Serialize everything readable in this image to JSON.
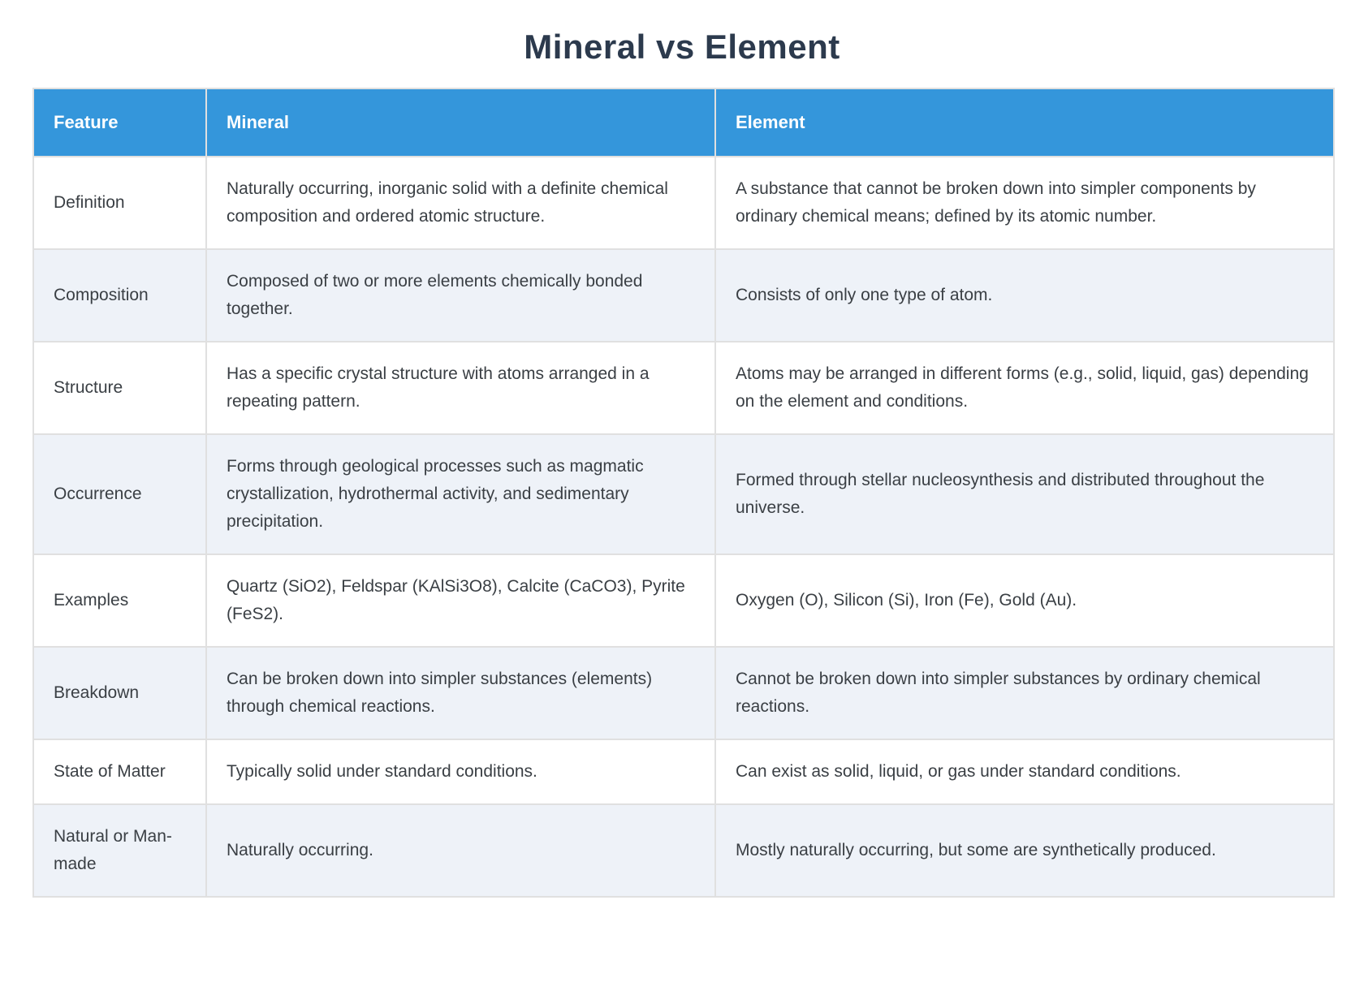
{
  "page": {
    "title": "Mineral vs Element"
  },
  "colors": {
    "header_bg": "#3496db",
    "header_text": "#ffffff",
    "title_color": "#2c3a4d",
    "row_alt_bg": "#eef2f8",
    "row_bg": "#ffffff",
    "border": "#e0e0e0",
    "text": "#3a3f44"
  },
  "table": {
    "columns": [
      {
        "key": "feature",
        "label": "Feature"
      },
      {
        "key": "mineral",
        "label": "Mineral"
      },
      {
        "key": "element",
        "label": "Element"
      }
    ],
    "rows": [
      {
        "feature": "Definition",
        "mineral": "Naturally occurring, inorganic solid with a definite chemical composition and ordered atomic structure.",
        "element": "A substance that cannot be broken down into simpler components by ordinary chemical means; defined by its atomic number."
      },
      {
        "feature": "Composition",
        "mineral": "Composed of two or more elements chemically bonded together.",
        "element": "Consists of only one type of atom."
      },
      {
        "feature": "Structure",
        "mineral": "Has a specific crystal structure with atoms arranged in a repeating pattern.",
        "element": "Atoms may be arranged in different forms (e.g., solid, liquid, gas) depending on the element and conditions."
      },
      {
        "feature": "Occurrence",
        "mineral": "Forms through geological processes such as magmatic crystallization, hydrothermal activity, and sedimentary precipitation.",
        "element": "Formed through stellar nucleosynthesis and distributed throughout the universe."
      },
      {
        "feature": "Examples",
        "mineral": "Quartz (SiO2), Feldspar (KAlSi3O8), Calcite (CaCO3), Pyrite (FeS2).",
        "element": "Oxygen (O), Silicon (Si), Iron (Fe), Gold (Au)."
      },
      {
        "feature": "Breakdown",
        "mineral": "Can be broken down into simpler substances (elements) through chemical reactions.",
        "element": "Cannot be broken down into simpler substances by ordinary chemical reactions."
      },
      {
        "feature": "State of Matter",
        "mineral": "Typically solid under standard conditions.",
        "element": "Can exist as solid, liquid, or gas under standard conditions."
      },
      {
        "feature": "Natural or Man-made",
        "mineral": "Naturally occurring.",
        "element": "Mostly naturally occurring, but some are synthetically produced."
      }
    ]
  }
}
